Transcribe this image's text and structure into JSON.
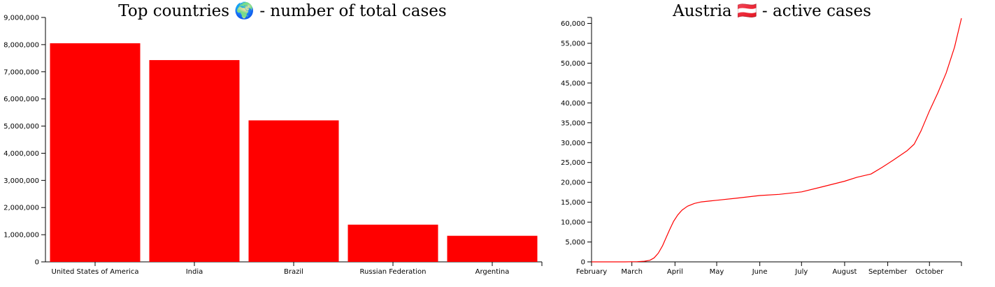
{
  "charts": [
    {
      "title": "Top countries 🌍 - number of total cases"
    },
    {
      "title": "Austria 🇦🇹 - active cases"
    }
  ],
  "chart_data": [
    {
      "type": "bar",
      "title": "Top countries 🌍 - number of total cases",
      "categories": [
        "United States of America",
        "India",
        "Brazil",
        "Russian Federation",
        "Argentina"
      ],
      "values": [
        8050000,
        7430000,
        5210000,
        1370000,
        960000
      ],
      "ylim": [
        0,
        9000000
      ],
      "yticks": [
        0,
        1000000,
        2000000,
        3000000,
        4000000,
        5000000,
        6000000,
        7000000,
        8000000,
        9000000
      ],
      "ytick_labels": [
        "0",
        "1,000,000",
        "2,000,000",
        "3,000,000",
        "4,000,000",
        "5,000,000",
        "6,000,000",
        "7,000,000",
        "8,000,000",
        "9,000,000"
      ],
      "grid": false,
      "color": "#ff0000"
    },
    {
      "type": "line",
      "title": "Austria 🇦🇹 - active cases",
      "xlim": [
        "2020-02-01",
        "2020-10-24"
      ],
      "xticks": [
        "2020-02-01",
        "2020-03-01",
        "2020-04-01",
        "2020-05-01",
        "2020-06-01",
        "2020-07-01",
        "2020-08-01",
        "2020-09-01",
        "2020-10-01"
      ],
      "xtick_labels": [
        "February",
        "March",
        "April",
        "May",
        "June",
        "July",
        "August",
        "September",
        "October"
      ],
      "ylim": [
        0,
        61500
      ],
      "yticks": [
        0,
        5000,
        10000,
        15000,
        20000,
        25000,
        30000,
        35000,
        40000,
        45000,
        50000,
        55000,
        60000
      ],
      "ytick_labels": [
        "0",
        "5,000",
        "10,000",
        "15,000",
        "20,000",
        "25,000",
        "30,000",
        "35,000",
        "40,000",
        "45,000",
        "50,000",
        "55,000",
        "60,000"
      ],
      "grid": false,
      "color": "#ff0000",
      "x": [
        "2020-02-01",
        "2020-02-25",
        "2020-03-05",
        "2020-03-10",
        "2020-03-14",
        "2020-03-17",
        "2020-03-20",
        "2020-03-23",
        "2020-03-25",
        "2020-03-28",
        "2020-03-31",
        "2020-04-03",
        "2020-04-06",
        "2020-04-10",
        "2020-04-15",
        "2020-04-20",
        "2020-05-01",
        "2020-05-15",
        "2020-06-01",
        "2020-06-15",
        "2020-07-01",
        "2020-07-15",
        "2020-08-01",
        "2020-08-10",
        "2020-08-20",
        "2020-08-28",
        "2020-09-05",
        "2020-09-10",
        "2020-09-15",
        "2020-09-20",
        "2020-09-25",
        "2020-10-01",
        "2020-10-07",
        "2020-10-13",
        "2020-10-19",
        "2020-10-24"
      ],
      "y": [
        0,
        0,
        50,
        150,
        400,
        1000,
        2200,
        4000,
        5600,
        8000,
        10200,
        11800,
        13000,
        14000,
        14700,
        15100,
        15500,
        16000,
        16700,
        17000,
        17600,
        18800,
        20300,
        21300,
        22100,
        23800,
        25600,
        26800,
        28000,
        29600,
        33000,
        38000,
        42500,
        47500,
        54000,
        61300
      ]
    }
  ]
}
